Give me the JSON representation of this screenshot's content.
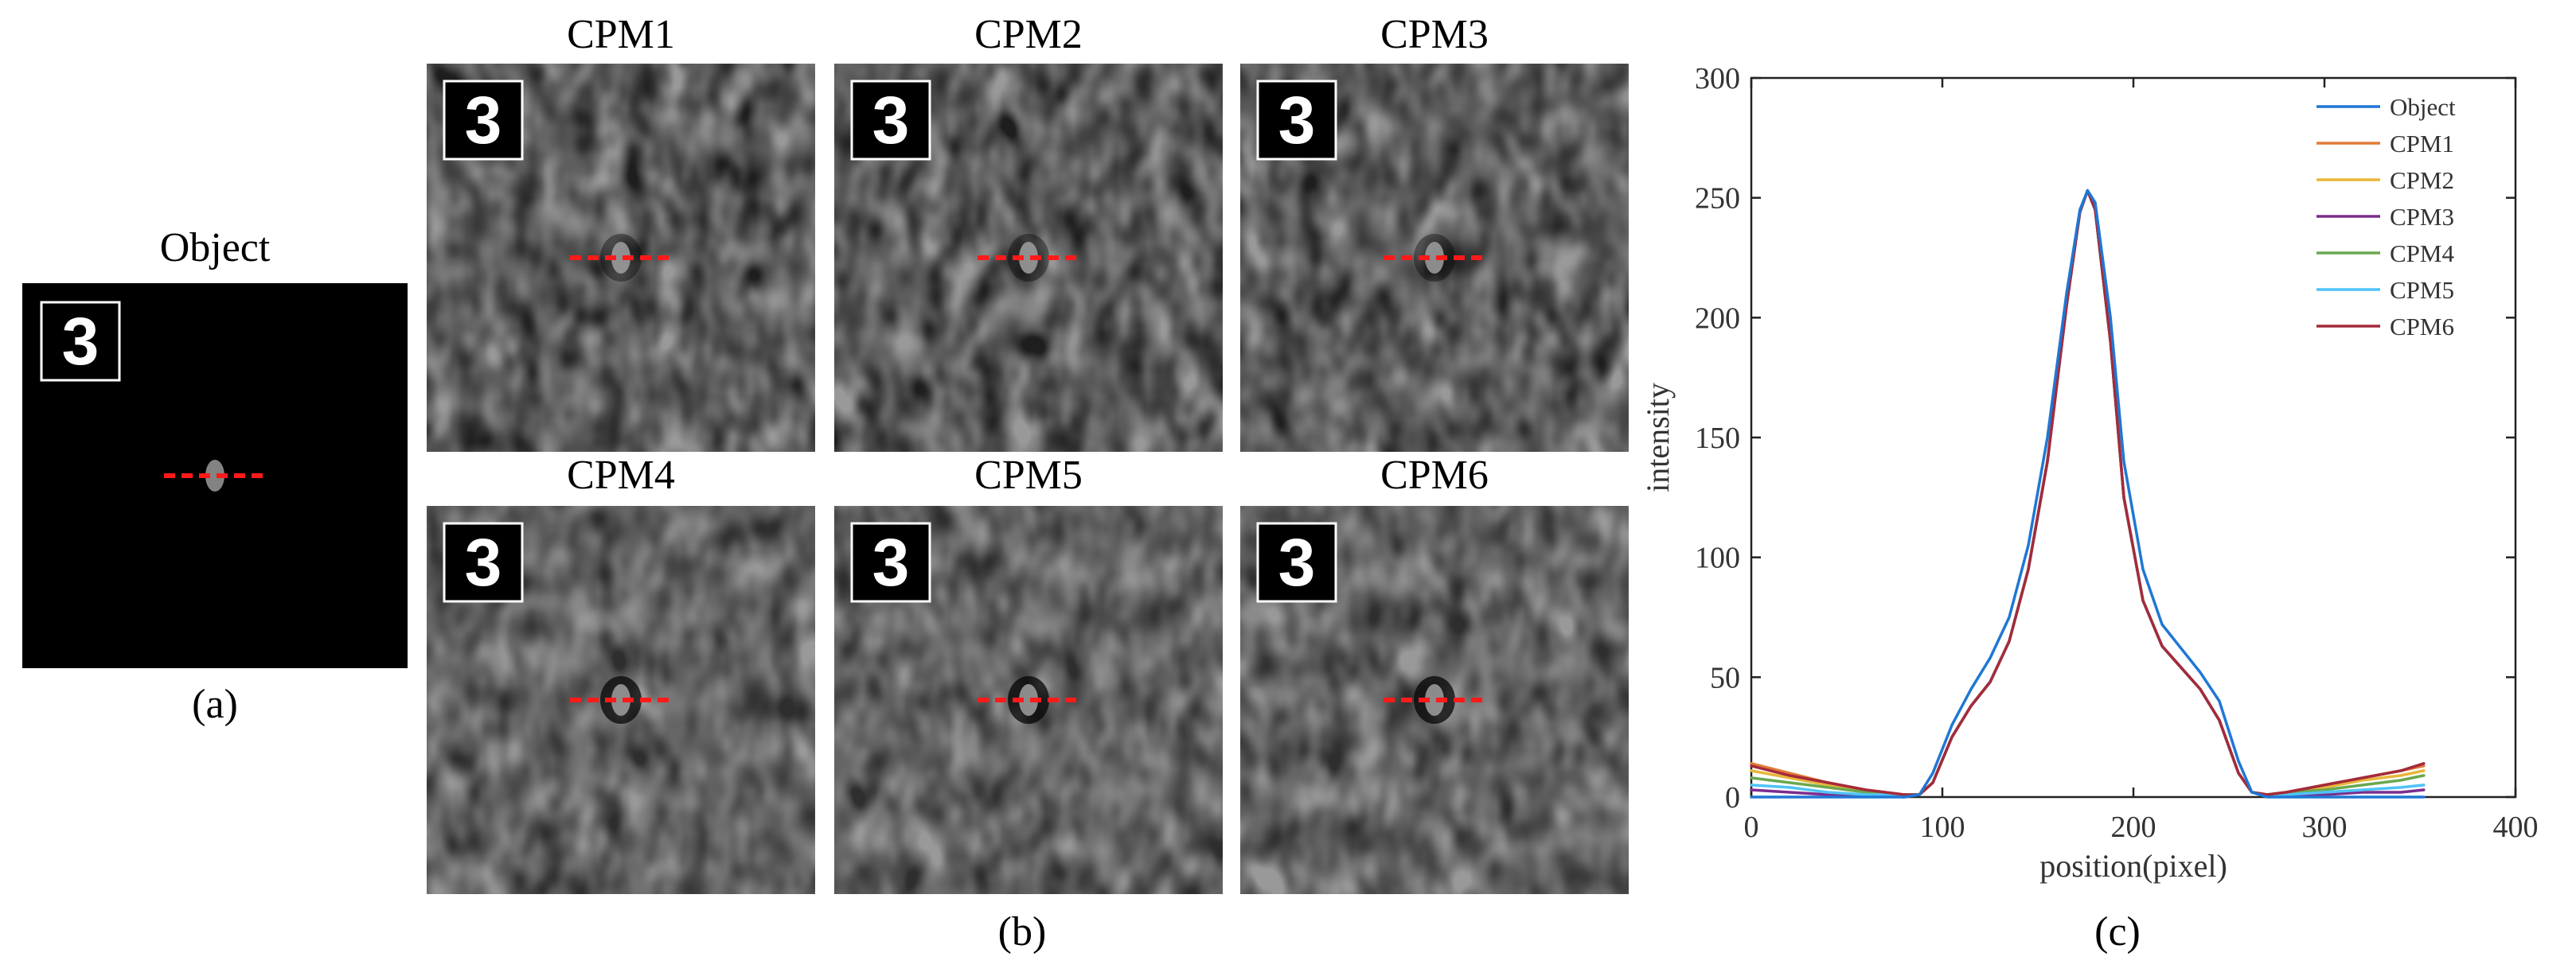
{
  "object_panel": {
    "title": "Object",
    "caption": "(a)",
    "inset_digit": "3"
  },
  "cpm_panels": {
    "caption": "(b)",
    "items": [
      {
        "title": "CPM1",
        "inset_digit": "3"
      },
      {
        "title": "CPM2",
        "inset_digit": "3"
      },
      {
        "title": "CPM3",
        "inset_digit": "3"
      },
      {
        "title": "CPM4",
        "inset_digit": "3"
      },
      {
        "title": "CPM5",
        "inset_digit": "3"
      },
      {
        "title": "CPM6",
        "inset_digit": "3"
      }
    ]
  },
  "chart_caption": "(c)",
  "chart_data": {
    "type": "line",
    "xlabel": "position(pixel)",
    "ylabel": "intensity",
    "xlim": [
      0,
      400
    ],
    "ylim": [
      0,
      300
    ],
    "xticks": [
      0,
      100,
      200,
      300,
      400
    ],
    "yticks": [
      0,
      50,
      100,
      150,
      200,
      250,
      300
    ],
    "grid": false,
    "legend_position": "top-right",
    "series": [
      {
        "name": "Object",
        "color": "#1f77d4",
        "x": [
          0,
          20,
          40,
          60,
          80,
          88,
          95,
          105,
          115,
          125,
          135,
          145,
          155,
          165,
          172,
          176,
          180,
          188,
          195,
          205,
          215,
          225,
          235,
          245,
          255,
          262,
          270,
          280,
          300,
          320,
          340,
          352
        ],
        "y": [
          0,
          0,
          0,
          0,
          0,
          1,
          10,
          30,
          45,
          58,
          75,
          105,
          150,
          210,
          245,
          253,
          248,
          200,
          140,
          95,
          72,
          62,
          52,
          40,
          15,
          2,
          0,
          0,
          0,
          0,
          0,
          0
        ]
      },
      {
        "name": "CPM1",
        "color": "#e07b39",
        "x": [
          0,
          20,
          40,
          60,
          80,
          88,
          95,
          105,
          115,
          125,
          135,
          145,
          155,
          165,
          172,
          176,
          180,
          188,
          195,
          205,
          215,
          225,
          235,
          245,
          255,
          262,
          270,
          280,
          300,
          320,
          340,
          352
        ],
        "y": [
          14,
          10,
          6,
          3,
          1,
          1,
          6,
          25,
          38,
          48,
          65,
          95,
          140,
          205,
          244,
          253,
          245,
          190,
          125,
          82,
          63,
          54,
          45,
          32,
          10,
          2,
          1,
          2,
          5,
          8,
          11,
          13
        ]
      },
      {
        "name": "CPM2",
        "color": "#e8b739",
        "x": [
          0,
          20,
          40,
          60,
          80,
          88,
          95,
          105,
          115,
          125,
          135,
          145,
          155,
          165,
          172,
          176,
          180,
          188,
          195,
          205,
          215,
          225,
          235,
          245,
          255,
          262,
          270,
          280,
          300,
          320,
          340,
          352
        ],
        "y": [
          11,
          8,
          5,
          2,
          1,
          1,
          6,
          25,
          38,
          48,
          65,
          95,
          140,
          205,
          244,
          253,
          245,
          190,
          125,
          82,
          63,
          54,
          45,
          32,
          10,
          2,
          1,
          2,
          4,
          7,
          9,
          11
        ]
      },
      {
        "name": "CPM3",
        "color": "#7b2d8e",
        "x": [
          0,
          20,
          40,
          60,
          80,
          88,
          95,
          105,
          115,
          125,
          135,
          145,
          155,
          165,
          172,
          176,
          180,
          188,
          195,
          205,
          215,
          225,
          235,
          245,
          255,
          262,
          270,
          280,
          300,
          320,
          340,
          352
        ],
        "y": [
          3,
          2,
          1,
          1,
          0,
          1,
          6,
          25,
          38,
          48,
          65,
          95,
          140,
          205,
          244,
          253,
          245,
          190,
          125,
          82,
          63,
          54,
          45,
          32,
          10,
          2,
          1,
          1,
          1,
          2,
          2,
          3
        ]
      },
      {
        "name": "CPM4",
        "color": "#6aa84f",
        "x": [
          0,
          20,
          40,
          60,
          80,
          88,
          95,
          105,
          115,
          125,
          135,
          145,
          155,
          165,
          172,
          176,
          180,
          188,
          195,
          205,
          215,
          225,
          235,
          245,
          255,
          262,
          270,
          280,
          300,
          320,
          340,
          352
        ],
        "y": [
          8,
          6,
          4,
          2,
          1,
          1,
          6,
          25,
          38,
          48,
          65,
          95,
          140,
          205,
          244,
          253,
          245,
          190,
          125,
          82,
          63,
          54,
          45,
          32,
          10,
          2,
          1,
          2,
          3,
          5,
          7,
          9
        ]
      },
      {
        "name": "CPM5",
        "color": "#4fc3f7",
        "x": [
          0,
          20,
          40,
          60,
          80,
          88,
          95,
          105,
          115,
          125,
          135,
          145,
          155,
          165,
          172,
          176,
          180,
          188,
          195,
          205,
          215,
          225,
          235,
          245,
          255,
          262,
          270,
          280,
          300,
          320,
          340,
          352
        ],
        "y": [
          5,
          4,
          2,
          1,
          1,
          1,
          6,
          25,
          38,
          48,
          65,
          95,
          140,
          205,
          244,
          253,
          245,
          190,
          125,
          82,
          63,
          54,
          45,
          32,
          10,
          2,
          1,
          1,
          2,
          3,
          4,
          5
        ]
      },
      {
        "name": "CPM6",
        "color": "#a52a3a",
        "x": [
          0,
          20,
          40,
          60,
          80,
          88,
          95,
          105,
          115,
          125,
          135,
          145,
          155,
          165,
          172,
          176,
          180,
          188,
          195,
          205,
          215,
          225,
          235,
          245,
          255,
          262,
          270,
          280,
          300,
          320,
          340,
          352
        ],
        "y": [
          13,
          9,
          6,
          3,
          1,
          1,
          6,
          25,
          38,
          48,
          65,
          95,
          140,
          205,
          244,
          253,
          245,
          190,
          125,
          82,
          63,
          54,
          45,
          32,
          10,
          2,
          1,
          2,
          5,
          8,
          11,
          14
        ]
      }
    ]
  }
}
